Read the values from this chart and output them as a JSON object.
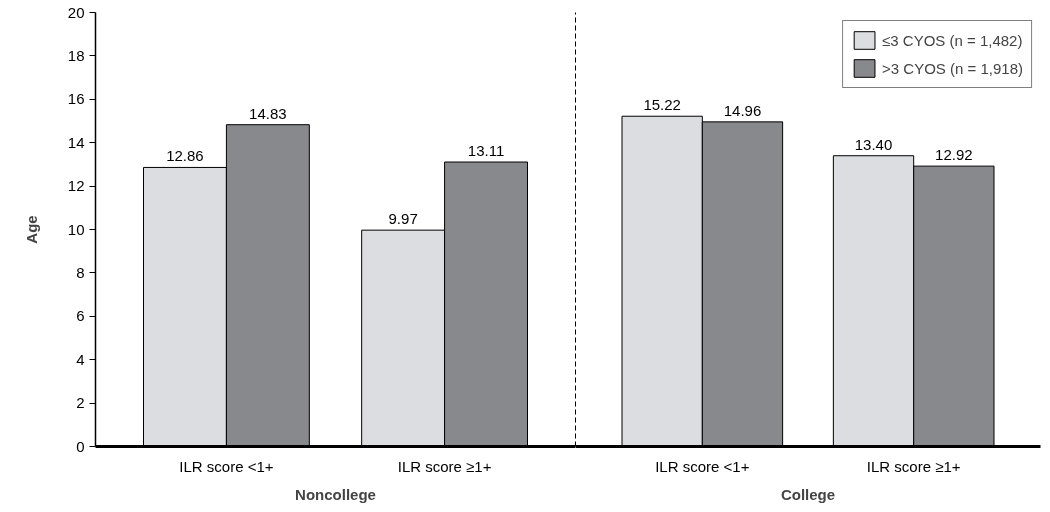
{
  "chart_data": [
    {
      "type": "bar",
      "categories": [
        "ILR score <1+",
        "ILR score ≥1+"
      ],
      "xlabel": "Noncollege",
      "ylabel": "Age",
      "ylim": [
        0,
        20
      ],
      "yticks": [
        0,
        2,
        4,
        6,
        8,
        10,
        12,
        14,
        16,
        18,
        20
      ],
      "grid": false,
      "series": [
        {
          "color": "#dcdde0",
          "values": [
            12.86,
            9.97
          ],
          "value_labels": [
            "12.86",
            "9.97"
          ]
        },
        {
          "color": "#88898d",
          "values": [
            14.83,
            13.11
          ],
          "value_labels": [
            "14.83",
            "13.11"
          ]
        }
      ]
    },
    {
      "type": "bar",
      "categories": [
        "ILR score <1+",
        "ILR score ≥1+"
      ],
      "xlabel": "College",
      "ylim": [
        0,
        20
      ],
      "tick_labels": "x",
      "grid": false,
      "legend": "top right",
      "series": [
        {
          "name": "≤3 CYOS (n = 1,482)",
          "color": "#dcdde0",
          "values": [
            15.22,
            13.4
          ],
          "value_labels": [
            "15.22",
            "13.40"
          ]
        },
        {
          "name": ">3 CYOS (n = 1,918)",
          "color": "#88898d",
          "values": [
            14.96,
            12.92
          ],
          "value_labels": [
            "14.96",
            "12.92"
          ]
        }
      ]
    }
  ]
}
